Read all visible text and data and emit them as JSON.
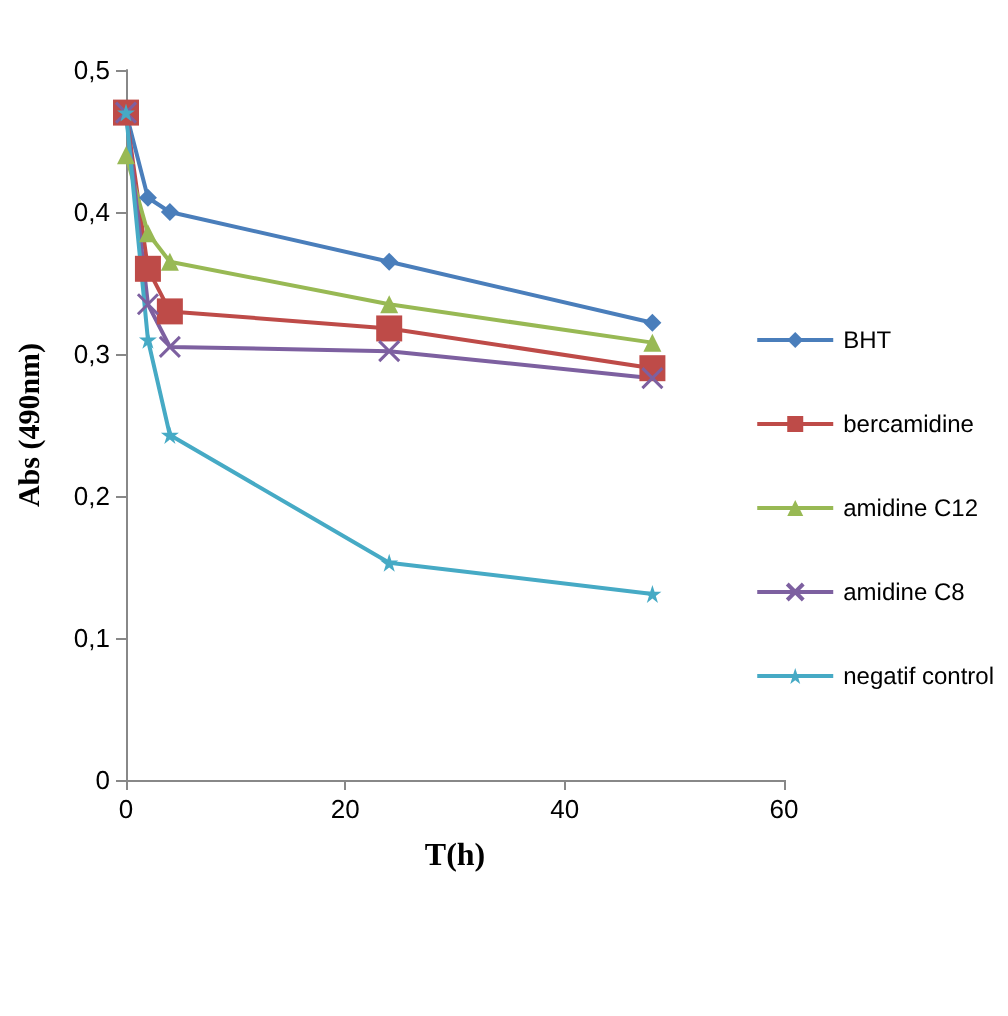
{
  "chart_data": {
    "type": "line",
    "xlabel": "T(h)",
    "ylabel": "Abs (490nm)",
    "x": [
      0,
      2,
      4,
      24,
      48
    ],
    "series": [
      {
        "name": "BHT",
        "color": "#4a7ebb",
        "marker": "diamond",
        "values": [
          0.47,
          0.41,
          0.4,
          0.365,
          0.322
        ]
      },
      {
        "name": "bercamidine",
        "color": "#be4b48",
        "marker": "square",
        "values": [
          0.47,
          0.36,
          0.33,
          0.318,
          0.29
        ]
      },
      {
        "name": "amidine C12",
        "color": "#98b954",
        "marker": "triangle",
        "values": [
          0.44,
          0.385,
          0.365,
          0.335,
          0.308
        ]
      },
      {
        "name": "amidine C8",
        "color": "#7d60a0",
        "marker": "cross",
        "values": [
          0.47,
          0.335,
          0.305,
          0.302,
          0.283
        ]
      },
      {
        "name": "negatif control",
        "color": "#46aac5",
        "marker": "star",
        "values": [
          0.47,
          0.31,
          0.243,
          0.153,
          0.131
        ]
      }
    ],
    "xlim": [
      0,
      60
    ],
    "xticks": [
      0,
      20,
      40,
      60
    ],
    "ylim": [
      0,
      0.5
    ],
    "yticks": [
      {
        "value": 0,
        "label": "0"
      },
      {
        "value": 0.1,
        "label": "0,1"
      },
      {
        "value": 0.2,
        "label": "0,2"
      },
      {
        "value": 0.3,
        "label": "0,3"
      },
      {
        "value": 0.4,
        "label": "0,4"
      },
      {
        "value": 0.5,
        "label": "0,5"
      }
    ],
    "grid": false,
    "legend": "right"
  }
}
